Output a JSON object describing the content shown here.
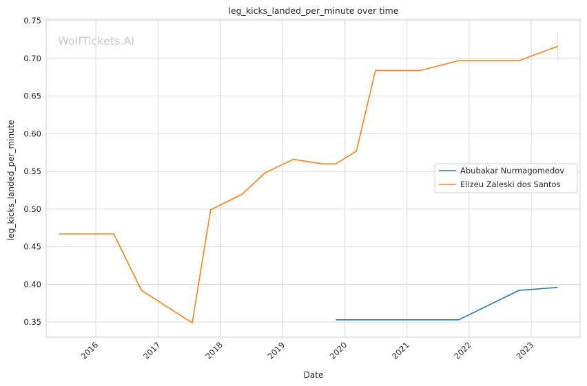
{
  "watermark": "WolfTickets.AI",
  "chart_data": {
    "type": "line",
    "title": "leg_kicks_landed_per_minute over time",
    "xlabel": "Date",
    "ylabel": "leg_kicks_landed_per_minute",
    "xlim": [
      "2015-03-15",
      "2023-10-15"
    ],
    "ylim": [
      0.33,
      0.752
    ],
    "x_ticks": [
      "2016",
      "2017",
      "2018",
      "2019",
      "2020",
      "2021",
      "2022",
      "2023"
    ],
    "y_ticks": [
      "0.35",
      "0.40",
      "0.45",
      "0.50",
      "0.55",
      "0.60",
      "0.65",
      "0.70",
      "0.75"
    ],
    "grid": true,
    "legend_position": "center-right",
    "series": [
      {
        "name": "Abubakar Nurmagomedov",
        "color": "#1f77b4",
        "points": [
          [
            "2019-11-10",
            0.353
          ],
          [
            "2021-11-01",
            0.353
          ],
          [
            "2022-10-20",
            0.392
          ],
          [
            "2023-06-05",
            0.396
          ]
        ]
      },
      {
        "name": "Elizeu Zaleski dos Santos",
        "color": "#ff7f0e",
        "points": [
          [
            "2015-05-30",
            0.467
          ],
          [
            "2016-04-15",
            0.467
          ],
          [
            "2016-09-25",
            0.392
          ],
          [
            "2017-07-20",
            0.349
          ],
          [
            "2017-11-05",
            0.499
          ],
          [
            "2018-05-10",
            0.52
          ],
          [
            "2018-09-20",
            0.548
          ],
          [
            "2019-03-05",
            0.566
          ],
          [
            "2019-08-25",
            0.56
          ],
          [
            "2019-11-10",
            0.56
          ],
          [
            "2020-03-10",
            0.577
          ],
          [
            "2020-06-30",
            0.684
          ],
          [
            "2021-03-20",
            0.684
          ],
          [
            "2021-11-01",
            0.697
          ],
          [
            "2022-10-20",
            0.697
          ],
          [
            "2023-06-05",
            0.716
          ]
        ],
        "error_bar": {
          "x": "2023-06-05",
          "low": 0.698,
          "high": 0.735
        }
      }
    ]
  }
}
